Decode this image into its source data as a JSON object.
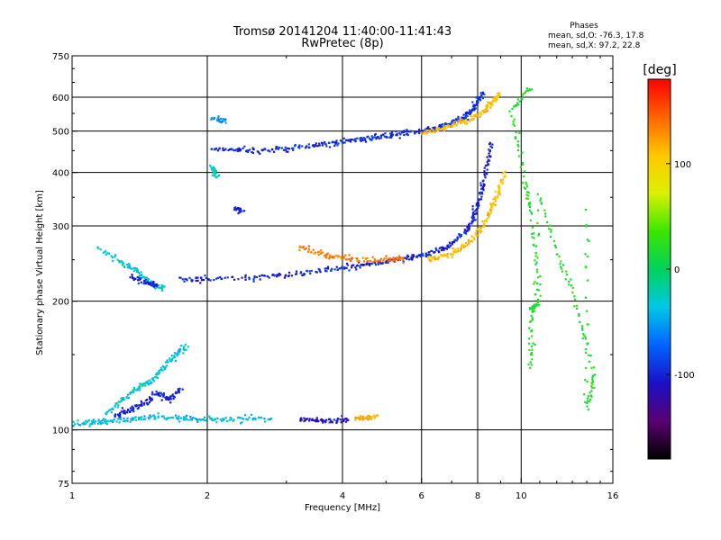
{
  "chart_data": {
    "type": "scatter",
    "title": "Tromsø 20141204 11:40:00-11:41:43",
    "subtitle": "RwPretec (8p)",
    "xlabel": "Frequency [MHz]",
    "ylabel": "Stationary phase Virtual Height [km]",
    "x_scale": "log",
    "y_scale": "log",
    "xlim": [
      1,
      16
    ],
    "ylim": [
      75,
      750
    ],
    "x_ticks": [
      1,
      2,
      4,
      6,
      8,
      10,
      16
    ],
    "y_ticks": [
      75,
      100,
      200,
      300,
      400,
      500,
      600,
      750
    ],
    "grid": true,
    "phases_info": {
      "heading": "Phases",
      "line1": "mean, sd,O: -76.3, 17.8",
      "line2": "mean, sd,X:  97.2, 22.8"
    },
    "colorbar": {
      "label": "[deg]",
      "ticks": [
        100,
        0,
        -100
      ],
      "range": [
        -180,
        180
      ],
      "colors": [
        "#000000",
        "#5a0070",
        "#1a10c8",
        "#0064ff",
        "#00c8e6",
        "#00d25a",
        "#3ce600",
        "#dcf000",
        "#ffc800",
        "#ff6400",
        "#ff0000"
      ]
    },
    "series": [
      {
        "points": [
          [
            2.05,
            455
          ],
          [
            2.3,
            452
          ],
          [
            2.6,
            450
          ],
          [
            3.0,
            455
          ],
          [
            3.4,
            462
          ],
          [
            3.8,
            470
          ],
          [
            4.2,
            476
          ],
          [
            4.6,
            482
          ],
          [
            5.0,
            487
          ],
          [
            5.5,
            493
          ],
          [
            6.0,
            500
          ],
          [
            6.5,
            510
          ],
          [
            7.0,
            522
          ],
          [
            7.5,
            540
          ],
          [
            7.8,
            560
          ],
          [
            8.0,
            585
          ],
          [
            8.2,
            615
          ]
        ],
        "phase": -95
      },
      {
        "points": [
          [
            6.0,
            495
          ],
          [
            6.6,
            505
          ],
          [
            7.2,
            518
          ],
          [
            7.8,
            535
          ],
          [
            8.3,
            560
          ],
          [
            8.7,
            590
          ],
          [
            8.9,
            610
          ]
        ],
        "phase": 110
      },
      {
        "points": [
          [
            1.75,
            225
          ],
          [
            2.0,
            225
          ],
          [
            2.5,
            227
          ],
          [
            3.0,
            230
          ],
          [
            3.5,
            235
          ],
          [
            4.0,
            240
          ],
          [
            4.5,
            244
          ],
          [
            5.0,
            248
          ],
          [
            5.5,
            252
          ],
          [
            6.0,
            256
          ],
          [
            6.5,
            262
          ],
          [
            7.0,
            272
          ],
          [
            7.5,
            290
          ],
          [
            7.8,
            310
          ],
          [
            8.0,
            335
          ],
          [
            8.2,
            370
          ],
          [
            8.4,
            420
          ],
          [
            8.6,
            470
          ]
        ],
        "phase": -100
      },
      {
        "points": [
          [
            6.2,
            250
          ],
          [
            6.8,
            256
          ],
          [
            7.3,
            265
          ],
          [
            7.8,
            280
          ],
          [
            8.2,
            300
          ],
          [
            8.6,
            330
          ],
          [
            8.9,
            360
          ],
          [
            9.2,
            400
          ]
        ],
        "phase": 110
      },
      {
        "points": [
          [
            3.2,
            268
          ],
          [
            3.6,
            258
          ],
          [
            4.0,
            252
          ],
          [
            4.5,
            250
          ],
          [
            5.0,
            250
          ],
          [
            5.5,
            251
          ]
        ],
        "phase": 135
      },
      {
        "points": [
          [
            1.15,
            265
          ],
          [
            1.3,
            245
          ],
          [
            1.4,
            235
          ],
          [
            1.5,
            220
          ],
          [
            1.6,
            215
          ]
        ],
        "phase": -30
      },
      {
        "points": [
          [
            1.35,
            230
          ],
          [
            1.45,
            220
          ],
          [
            1.55,
            218
          ]
        ],
        "phase": -100
      },
      {
        "points": [
          [
            1.0,
            103
          ],
          [
            1.1,
            104
          ],
          [
            1.2,
            105
          ],
          [
            1.35,
            106
          ],
          [
            1.5,
            107
          ],
          [
            1.7,
            107
          ],
          [
            1.9,
            106
          ],
          [
            2.1,
            106
          ],
          [
            2.4,
            106
          ],
          [
            2.8,
            106
          ]
        ],
        "phase": -40
      },
      {
        "points": [
          [
            1.2,
            110
          ],
          [
            1.3,
            118
          ],
          [
            1.4,
            125
          ],
          [
            1.5,
            130
          ],
          [
            1.6,
            140
          ],
          [
            1.7,
            150
          ],
          [
            1.8,
            158
          ]
        ],
        "phase": -30
      },
      {
        "points": [
          [
            1.25,
            108
          ],
          [
            1.35,
            112
          ],
          [
            1.45,
            115
          ],
          [
            1.55,
            122
          ],
          [
            1.65,
            118
          ],
          [
            1.75,
            125
          ]
        ],
        "phase": -100
      },
      {
        "points": [
          [
            3.2,
            106
          ],
          [
            3.5,
            105
          ],
          [
            3.8,
            105
          ],
          [
            4.1,
            106
          ]
        ],
        "phase": -110
      },
      {
        "points": [
          [
            4.3,
            106
          ],
          [
            4.5,
            107
          ],
          [
            4.8,
            108
          ]
        ],
        "phase": 120
      },
      {
        "points": [
          [
            2.05,
            535
          ],
          [
            2.2,
            530
          ]
        ],
        "phase": -60
      },
      {
        "points": [
          [
            2.05,
            410
          ],
          [
            2.1,
            395
          ]
        ],
        "phase": -30
      },
      {
        "points": [
          [
            2.3,
            330
          ],
          [
            2.4,
            325
          ]
        ],
        "phase": -100
      },
      {
        "points": [
          [
            10.5,
            630
          ],
          [
            9.5,
            560
          ],
          [
            10.2,
            380
          ],
          [
            10.5,
            320
          ],
          [
            11.0,
            200
          ],
          [
            10.5,
            190
          ],
          [
            10.5,
            140
          ],
          [
            11.0,
            350
          ],
          [
            12.0,
            260
          ],
          [
            13.0,
            210
          ],
          [
            14.5,
            135
          ],
          [
            14.0,
            112
          ],
          [
            14.0,
            325
          ]
        ],
        "phase": 20
      }
    ]
  }
}
